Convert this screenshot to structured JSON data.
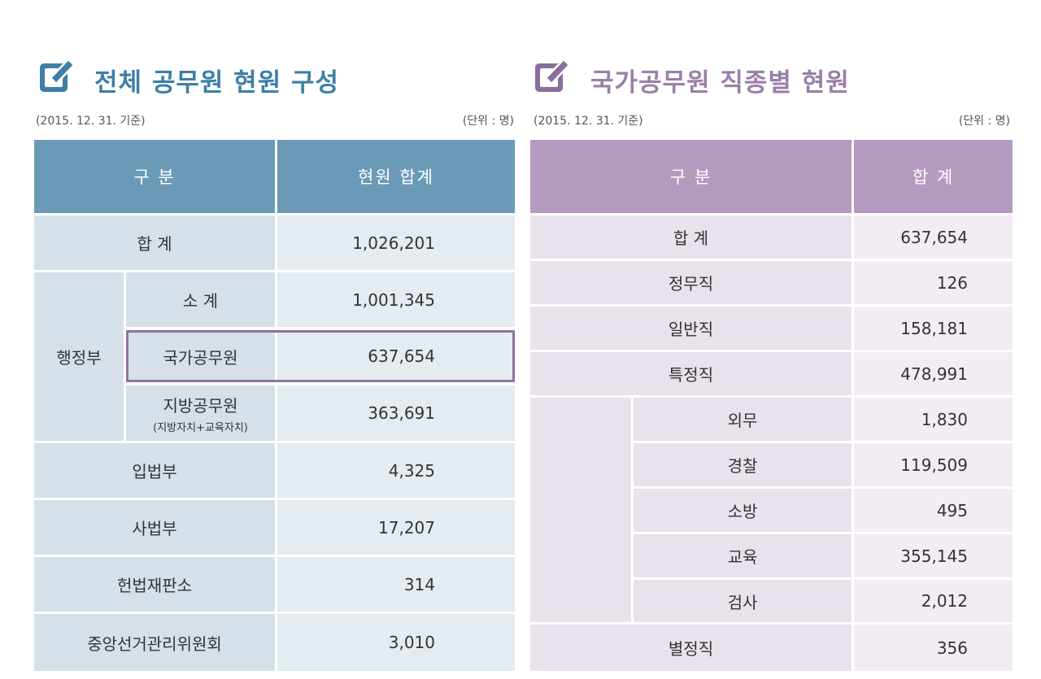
{
  "left": {
    "title": "전체 공무원 현원 구성",
    "date_note": "(2015. 12. 31. 기준)",
    "unit_note": "(단위 : 명)",
    "header": {
      "category": "구 분",
      "value": "현원 합계"
    },
    "total": {
      "label": "합 계",
      "value": "1,026,201"
    },
    "executive": {
      "label": "행정부",
      "subtotal": {
        "label": "소 계",
        "value": "1,001,345"
      },
      "national": {
        "label": "국가공무원",
        "value": "637,654"
      },
      "local": {
        "label": "지방공무원",
        "sublabel": "(지방자치+교육자치)",
        "value": "363,691"
      }
    },
    "legislative": {
      "label": "입법부",
      "value": "4,325"
    },
    "judicial": {
      "label": "사법부",
      "value": "17,207"
    },
    "constitutional": {
      "label": "헌법재판소",
      "value": "314"
    },
    "election": {
      "label": "중앙선거관리위원회",
      "value": "3,010"
    }
  },
  "right": {
    "title": "국가공무원 직종별 현원",
    "date_note": "(2015. 12. 31. 기준)",
    "unit_note": "(단위 : 명)",
    "header": {
      "category": "구 분",
      "value": "합 계"
    },
    "total": {
      "label": "합 계",
      "value": "637,654"
    },
    "political": {
      "label": "정무직",
      "value": "126"
    },
    "general": {
      "label": "일반직",
      "value": "158,181"
    },
    "special": {
      "label": "특정직",
      "value": "478,991",
      "items": [
        {
          "label": "외무",
          "value": "1,830"
        },
        {
          "label": "경찰",
          "value": "119,509"
        },
        {
          "label": "소방",
          "value": "495"
        },
        {
          "label": "교육",
          "value": "355,145"
        },
        {
          "label": "검사",
          "value": "2,012"
        }
      ]
    },
    "special_separate": {
      "label": "별정직",
      "value": "356"
    }
  },
  "colors": {
    "left_accent": "#3e7fa6",
    "left_header": "#6a9ab7",
    "right_accent": "#9a7fa8",
    "right_header": "#b59ac0",
    "highlight_border": "#8e73a3"
  },
  "icons": {
    "title": "edit-icon"
  }
}
